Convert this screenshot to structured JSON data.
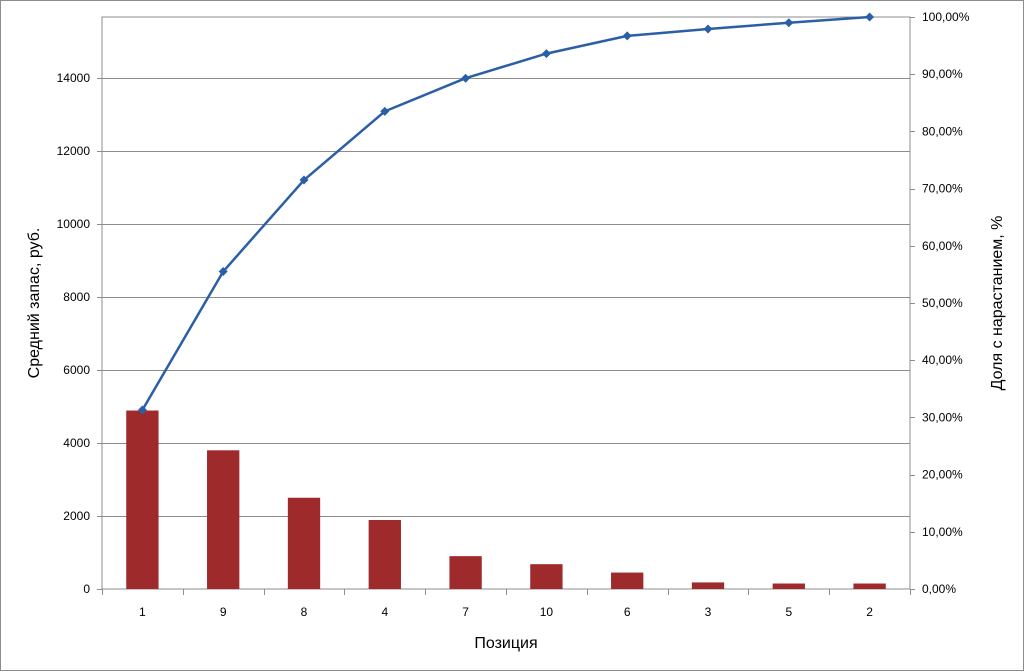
{
  "chart_data": {
    "type": "bar",
    "title": "",
    "xlabel": "Позиция",
    "ylabel": "Средний запас, руб.",
    "y2label": "Доля с нарастанием, %",
    "categories": [
      "1",
      "9",
      "8",
      "4",
      "7",
      "10",
      "6",
      "3",
      "5",
      "2"
    ],
    "ylim": [
      0,
      15672
    ],
    "y_ticks": [
      0,
      2000,
      4000,
      6000,
      8000,
      10000,
      12000,
      14000
    ],
    "y_tick_labels": [
      "0",
      "2000",
      "4000",
      "6000",
      "8000",
      "10000",
      "12000",
      "14000"
    ],
    "y2lim": [
      0,
      100
    ],
    "y2_ticks": [
      0,
      10,
      20,
      30,
      40,
      50,
      60,
      70,
      80,
      90,
      100
    ],
    "y2_tick_labels": [
      "0,00%",
      "10,00%",
      "20,00%",
      "30,00%",
      "40,00%",
      "50,00%",
      "60,00%",
      "70,00%",
      "80,00%",
      "90,00%",
      "100,00%"
    ],
    "grid": true,
    "series": [
      {
        "type": "bar",
        "axis": "left",
        "color": "#9e2a2b",
        "values": [
          4890,
          3800,
          2500,
          1890,
          900,
          680,
          450,
          180,
          150,
          150
        ]
      },
      {
        "type": "line",
        "axis": "right",
        "color": "#2b5fa5",
        "marker": "diamond",
        "values": [
          31.3,
          55.5,
          71.5,
          83.5,
          89.3,
          93.6,
          96.7,
          97.9,
          99.0,
          100.0
        ]
      }
    ]
  }
}
